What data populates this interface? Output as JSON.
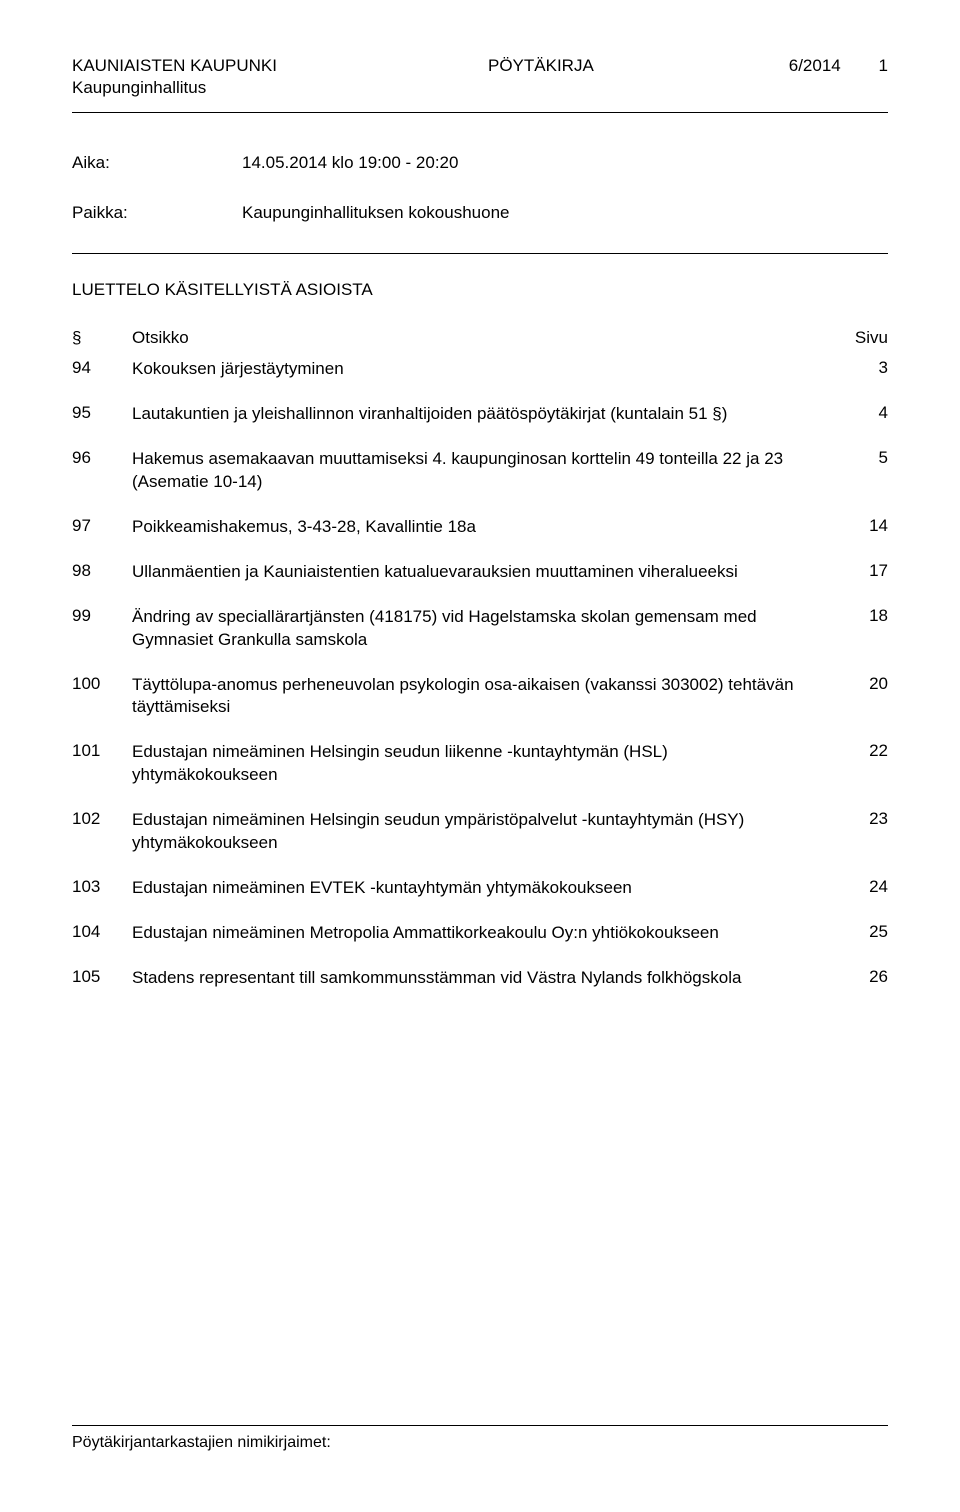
{
  "header": {
    "org": "KAUNIAISTEN KAUPUNKI",
    "org2": "Kaupunginhallitus",
    "doctype": "PÖYTÄKIRJA",
    "docnum": "6/2014",
    "pagenum": "1"
  },
  "meta": {
    "time_label": "Aika:",
    "time_value": "14.05.2014 klo 19:00 - 20:20",
    "place_label": "Paikka:",
    "place_value": "Kaupunginhallituksen kokoushuone"
  },
  "section_title": "LUETTELO KÄSITELLYISTÄ ASIOISTA",
  "toc_header": {
    "num": "§",
    "title": "Otsikko",
    "page": "Sivu"
  },
  "toc": [
    {
      "num": "94",
      "title": "Kokouksen järjestäytyminen",
      "page": "3"
    },
    {
      "num": "95",
      "title": "Lautakuntien ja yleishallinnon viranhaltijoiden päätöspöytäkirjat (kuntalain 51 §)",
      "page": "4"
    },
    {
      "num": "96",
      "title": "Hakemus asemakaavan muuttamiseksi 4. kaupunginosan korttelin 49 tonteilla 22 ja 23 (Asematie 10-14)",
      "page": "5"
    },
    {
      "num": "97",
      "title": "Poikkeamishakemus, 3-43-28, Kavallintie 18a",
      "page": "14"
    },
    {
      "num": "98",
      "title": "Ullanmäentien ja Kauniaistentien katualuevarauksien muuttaminen viheralueeksi",
      "page": "17"
    },
    {
      "num": "99",
      "title": "Ändring av speciallärartjänsten (418175) vid Hagelstamska skolan gemensam med Gymnasiet Grankulla samskola",
      "page": "18"
    },
    {
      "num": "100",
      "title": "Täyttölupa-anomus perheneuvolan psykologin osa-aikaisen (vakanssi 303002) tehtävän täyttämiseksi",
      "page": "20"
    },
    {
      "num": "101",
      "title": "Edustajan nimeäminen Helsingin seudun liikenne -kuntayhtymän (HSL) yhtymäkokoukseen",
      "page": "22"
    },
    {
      "num": "102",
      "title": "Edustajan nimeäminen Helsingin seudun ympäristöpalvelut -kuntayhtymän (HSY) yhtymäkokoukseen",
      "page": "23"
    },
    {
      "num": "103",
      "title": "Edustajan nimeäminen EVTEK -kuntayhtymän yhtymäkokoukseen",
      "page": "24"
    },
    {
      "num": "104",
      "title": "Edustajan nimeäminen Metropolia Ammattikorkeakoulu Oy:n yhtiökokoukseen",
      "page": "25"
    },
    {
      "num": "105",
      "title": "Stadens representant till samkommunsstämman vid Västra Nylands folkhögskola",
      "page": "26"
    }
  ],
  "footer": "Pöytäkirjantarkastajien nimikirjaimet:"
}
